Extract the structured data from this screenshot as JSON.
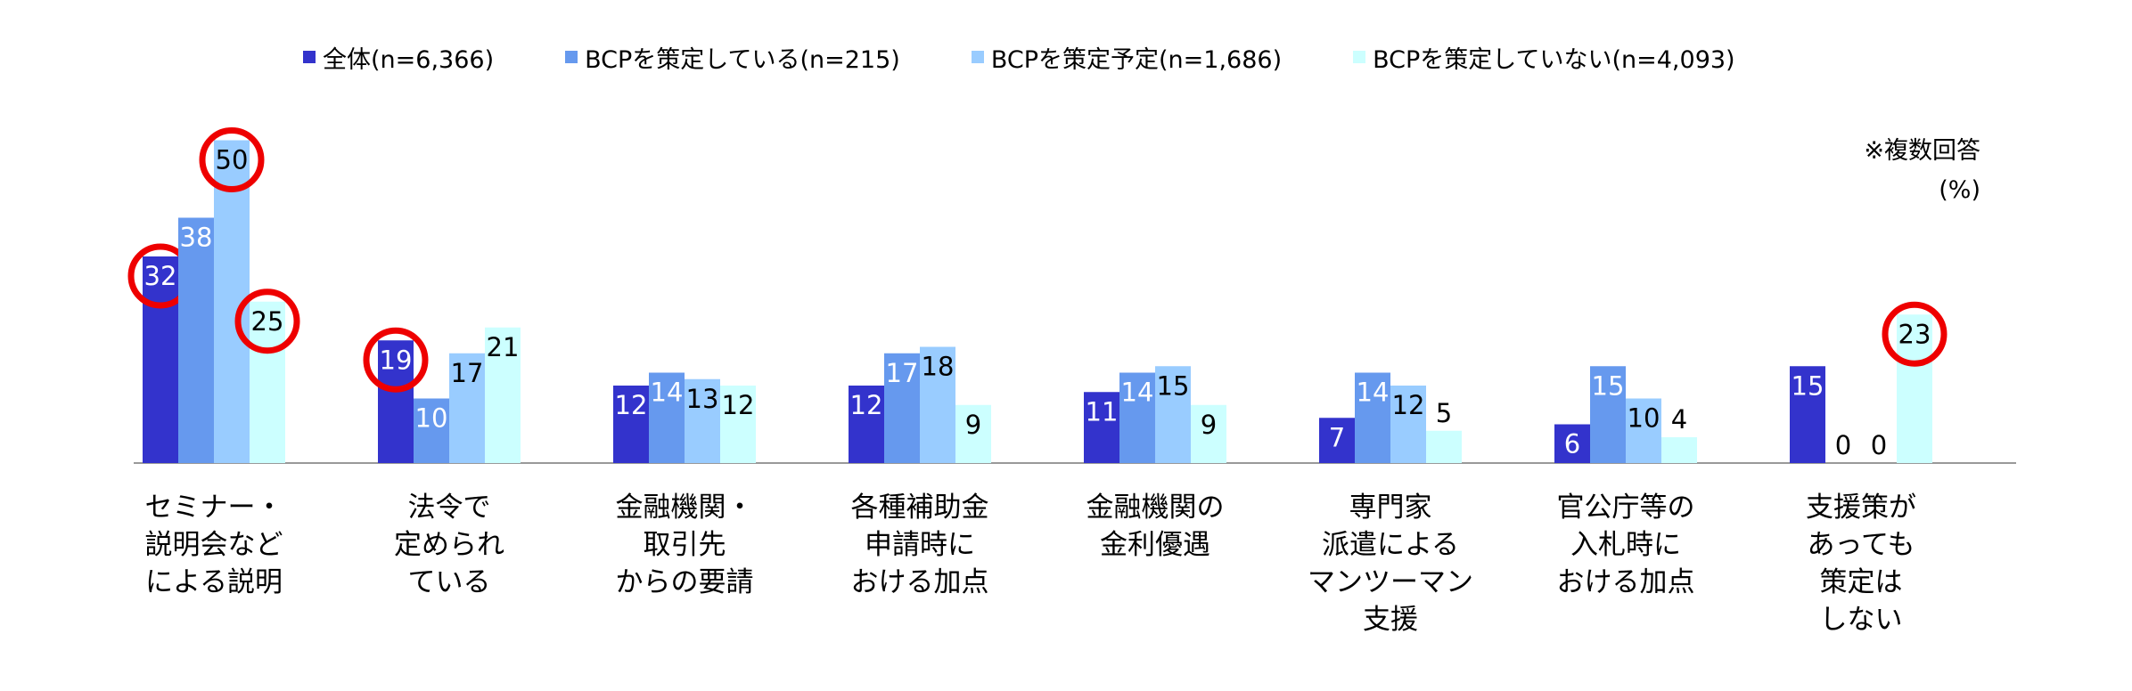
{
  "legend": {
    "items": [
      {
        "label": "全体(n=6,366)",
        "color": "#3333cc"
      },
      {
        "label": "BCPを策定している(n=215)",
        "color": "#6699ee"
      },
      {
        "label": "BCPを策定予定(n=1,686)",
        "color": "#99ccff"
      },
      {
        "label": "BCPを策定していない(n=4,093)",
        "color": "#ccffff"
      }
    ]
  },
  "note": {
    "line1": "※複数回答",
    "line2": "(%)"
  },
  "chart_data": {
    "type": "bar",
    "title": "",
    "xlabel": "",
    "ylabel": "",
    "ylim": [
      0,
      50
    ],
    "grid": false,
    "legend_position": "top",
    "categories": [
      [
        "セミナー・",
        "説明会など",
        "による説明"
      ],
      [
        "法令で",
        "定められ",
        "ている"
      ],
      [
        "金融機関・",
        "取引先",
        "からの要請"
      ],
      [
        "各種補助金",
        "申請時に",
        "おける加点"
      ],
      [
        "金融機関の",
        "金利優遇"
      ],
      [
        "専門家",
        "派遣による",
        "マンツーマン",
        "支援"
      ],
      [
        "官公庁等の",
        "入札時に",
        "おける加点"
      ],
      [
        "支援策が",
        "あっても",
        "策定は",
        "しない"
      ]
    ],
    "series": [
      {
        "name": "全体(n=6,366)",
        "color": "#3333cc",
        "values": [
          32,
          19,
          12,
          12,
          11,
          7,
          6,
          15
        ]
      },
      {
        "name": "BCPを策定している(n=215)",
        "color": "#6699ee",
        "values": [
          38,
          10,
          14,
          17,
          14,
          14,
          15,
          0
        ]
      },
      {
        "name": "BCPを策定予定(n=1,686)",
        "color": "#99ccff",
        "values": [
          50,
          17,
          13,
          18,
          15,
          12,
          10,
          0
        ]
      },
      {
        "name": "BCPを策定していない(n=4,093)",
        "color": "#ccffff",
        "values": [
          25,
          21,
          12,
          9,
          9,
          5,
          4,
          23
        ]
      }
    ],
    "highlighted": [
      {
        "series": 0,
        "category": 0
      },
      {
        "series": 2,
        "category": 0
      },
      {
        "series": 3,
        "category": 0
      },
      {
        "series": 0,
        "category": 1
      },
      {
        "series": 3,
        "category": 7
      }
    ],
    "highlight_color": "#ee0000"
  }
}
